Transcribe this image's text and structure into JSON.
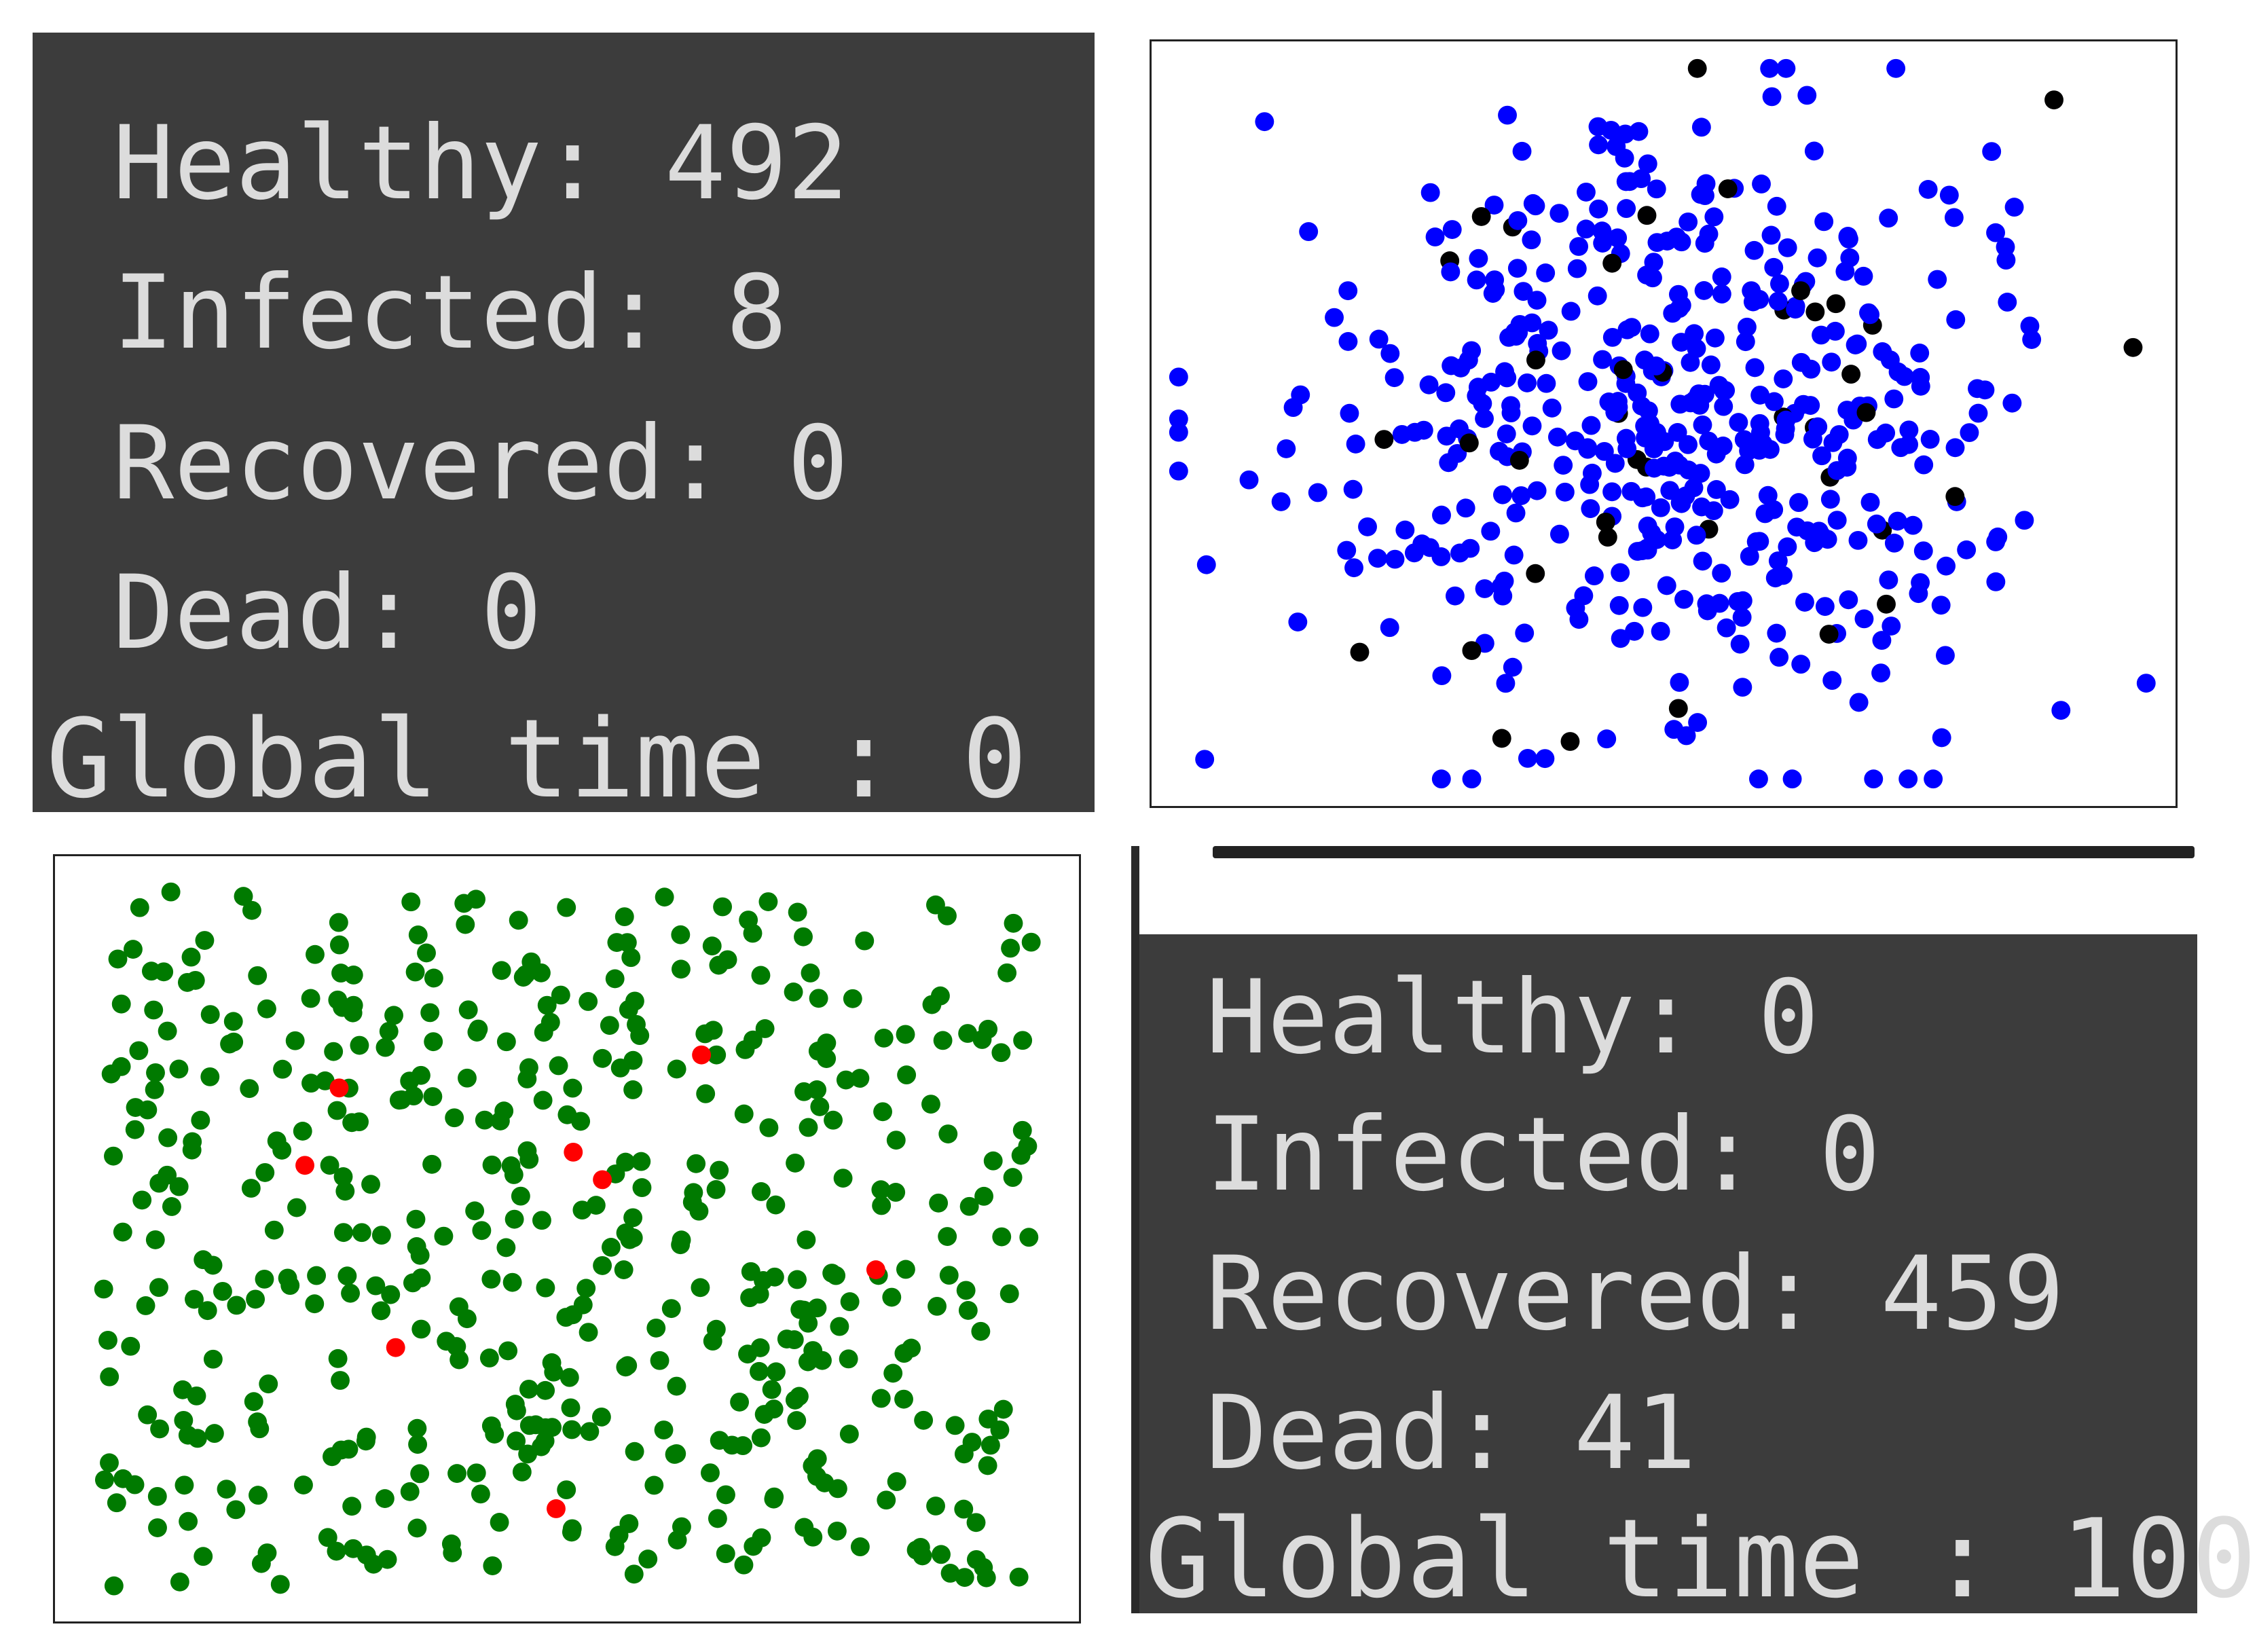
{
  "top_console": {
    "healthy": "Healthy: 492",
    "infected": "Infected: 8",
    "recovered": "Recovered: 0",
    "dead": "Dead: 0",
    "global_time": "Global time : 0"
  },
  "bottom_console": {
    "healthy": "Healthy: 0",
    "infected": "Infected: 0",
    "recovered": "Recovered: 459",
    "dead": "Dead: 41",
    "global_time": "Global time : 100"
  },
  "colors": {
    "console_bg": "#3c3c3c",
    "console_text": "#dcdcdc",
    "recovered": "#0000ff",
    "dead": "#000000",
    "healthy": "#007a00",
    "infected": "#ff0000"
  },
  "final_scatter": {
    "recovered_count": 459,
    "dead_count": 41,
    "recovered_color": "blue",
    "dead_color": "black"
  },
  "initial_scatter": {
    "healthy_count": 492,
    "infected_count": 8,
    "healthy_color": "green",
    "infected_color": "red"
  }
}
